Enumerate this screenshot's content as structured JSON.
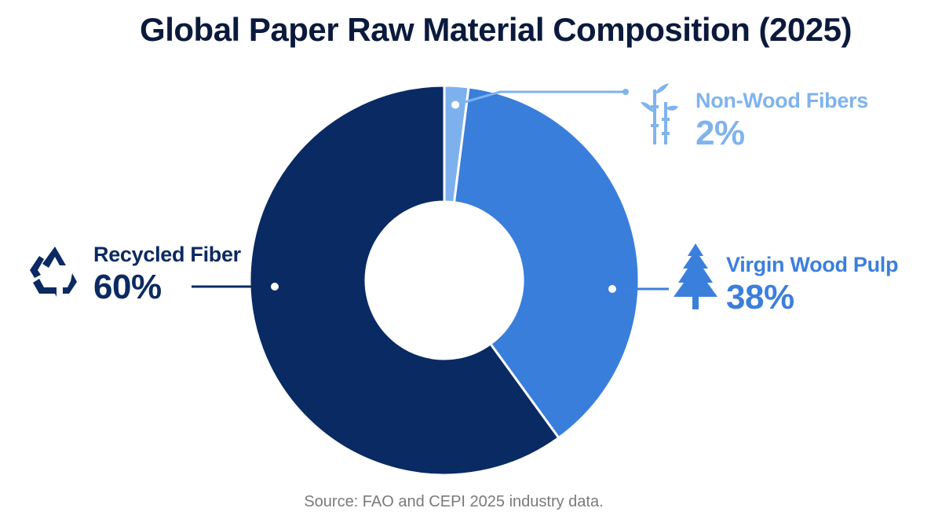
{
  "title": "Global Paper Raw Material Composition (2025)",
  "source": "Source: FAO and CEPI 2025 industry data.",
  "chart_data": {
    "type": "pie",
    "title": "Global Paper Raw Material Composition (2025)",
    "donut": true,
    "slices": [
      {
        "label": "Recycled Fiber",
        "value": 60,
        "value_label": "60%",
        "color": "#0a2a64",
        "icon": "recycle-icon"
      },
      {
        "label": "Virgin Wood Pulp",
        "value": 38,
        "value_label": "38%",
        "color": "#3a7edb",
        "icon": "pine-tree-icon"
      },
      {
        "label": "Non-Wood Fibers",
        "value": 2,
        "value_label": "2%",
        "color": "#7db1ee",
        "icon": "bamboo-icon"
      }
    ]
  }
}
